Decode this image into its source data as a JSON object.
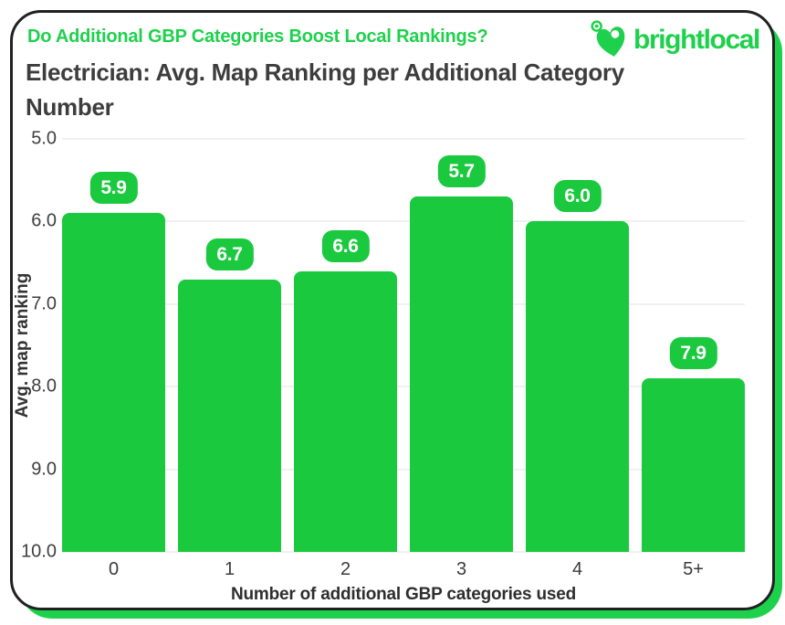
{
  "header": {
    "question": "Do Additional GBP Categories Boost Local Rankings?",
    "brand": "brightlocal"
  },
  "title": {
    "line1": "Electrician: Avg. Map Ranking per Additional Category",
    "line2": "Number"
  },
  "chart_data": {
    "type": "bar",
    "title": "Electrician: Avg. Map Ranking per Additional Category Number",
    "categories": [
      "0",
      "1",
      "2",
      "3",
      "4",
      "5+"
    ],
    "values": [
      5.9,
      6.7,
      6.6,
      5.7,
      6.0,
      7.9
    ],
    "value_labels": [
      "5.9",
      "6.7",
      "6.6",
      "5.7",
      "6.0",
      "7.9"
    ],
    "xlabel": "Number of additional GBP categories used",
    "ylabel": "Avg. map ranking",
    "ylim": [
      5.0,
      10.0
    ],
    "y_axis_inverted": true,
    "yticks": [
      "5.0",
      "6.0",
      "7.0",
      "8.0",
      "9.0",
      "10.0"
    ],
    "grid": "horizontal",
    "legend": "none"
  },
  "colors": {
    "accent_green": "#1ed14c",
    "bar_green": "#1bc93f",
    "badge_text": "#ffffff",
    "title_text": "#3d3d3d",
    "axis_text": "#3f3f3f",
    "grid": "#f0f1f2",
    "card_border": "#212121",
    "background": "#ffffff"
  },
  "icons": {
    "brand_icon": "heart-map-pin-with-signal"
  }
}
